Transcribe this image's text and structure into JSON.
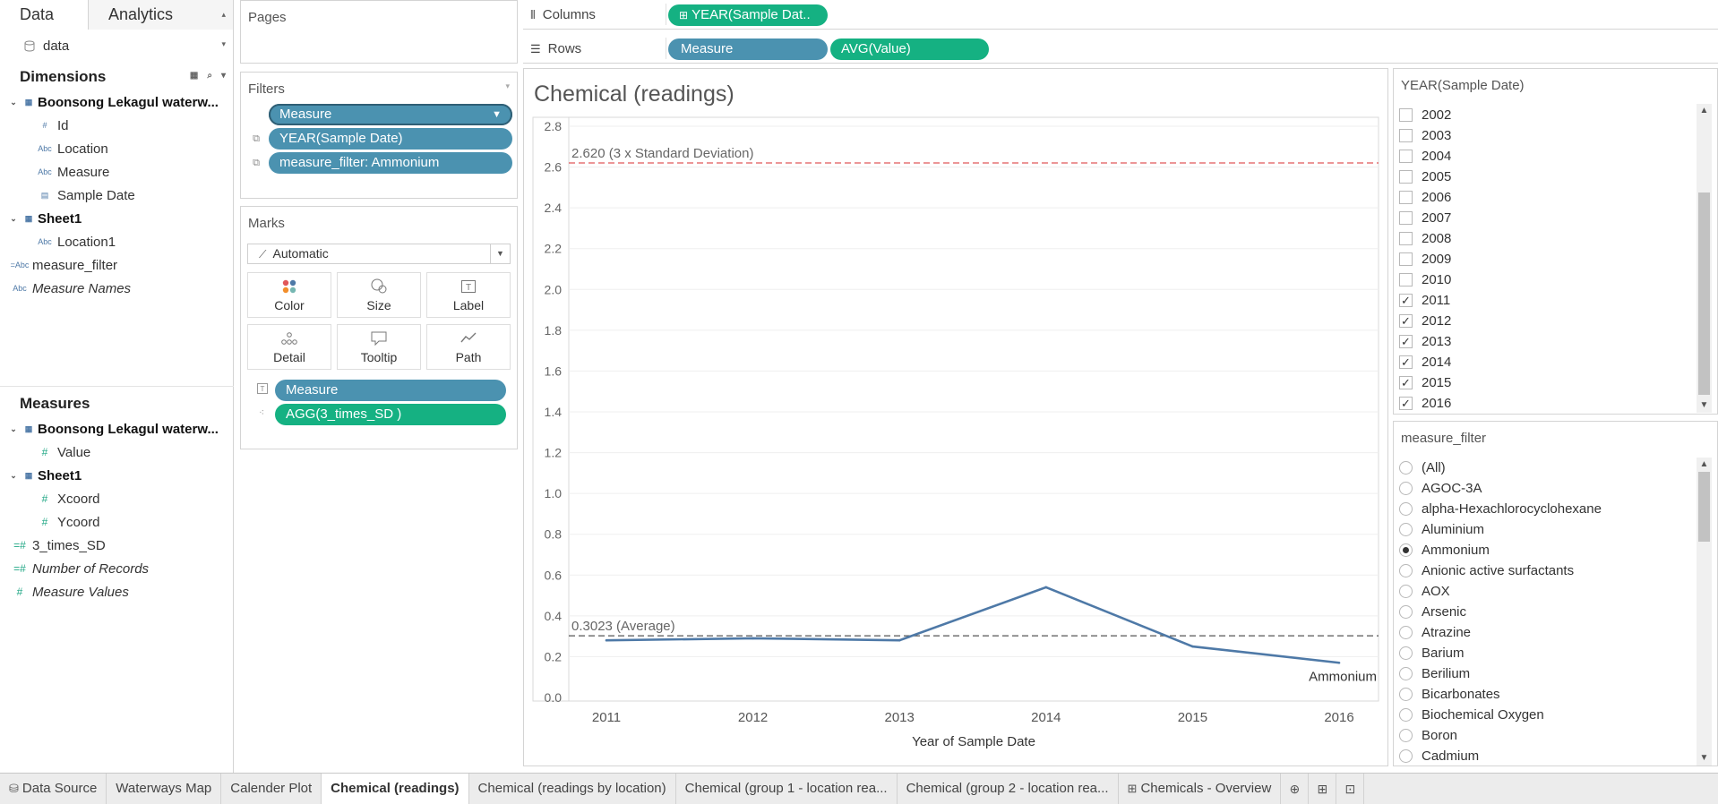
{
  "data_pane": {
    "tabs": [
      "Data",
      "Analytics"
    ],
    "datasource": "data",
    "dimensions_title": "Dimensions",
    "dimensions": [
      {
        "label": "Boonsong Lekagul waterw...",
        "group": true
      },
      {
        "label": "Id",
        "type": "#"
      },
      {
        "label": "Location",
        "type": "Abc"
      },
      {
        "label": "Measure",
        "type": "Abc"
      },
      {
        "label": "Sample Date",
        "type": "date"
      },
      {
        "label": "Sheet1",
        "group": true
      },
      {
        "label": "Location1",
        "type": "Abc"
      },
      {
        "label": "measure_filter",
        "type": "=Abc"
      },
      {
        "label": "Measure Names",
        "type": "Abc"
      }
    ],
    "measures_title": "Measures",
    "measures": [
      {
        "label": "Boonsong Lekagul waterw...",
        "group": true
      },
      {
        "label": "Value",
        "type": "#"
      },
      {
        "label": "Sheet1",
        "group": true
      },
      {
        "label": "Xcoord",
        "type": "#"
      },
      {
        "label": "Ycoord",
        "type": "#"
      },
      {
        "label": "3_times_SD",
        "type": "=#"
      },
      {
        "label": "Number of Records",
        "type": "=#"
      },
      {
        "label": "Measure Values",
        "type": "#"
      }
    ]
  },
  "pages": {
    "title": "Pages"
  },
  "filters": {
    "title": "Filters",
    "pills": [
      "Measure",
      "YEAR(Sample Date)",
      "measure_filter: Ammonium"
    ]
  },
  "marks": {
    "title": "Marks",
    "type": "Automatic",
    "buttons": [
      "Color",
      "Size",
      "Label",
      "Detail",
      "Tooltip",
      "Path"
    ],
    "pills": [
      "Measure",
      "AGG(3_times_SD )"
    ]
  },
  "shelves": {
    "columns_label": "Columns",
    "columns_pills": [
      "YEAR(Sample Dat.."
    ],
    "rows_label": "Rows",
    "rows_pills": [
      "Measure",
      "AVG(Value)"
    ]
  },
  "chart": {
    "title": "Chemical (readings)",
    "xlabel": "Year of Sample Date",
    "line_label": "Ammonium",
    "ref_sd_label": "2.620 (3 x Standard Deviation)",
    "ref_avg_label": "0.3023 (Average)",
    "colors": {
      "line": "#4e79a7",
      "sd_line": "#e15759",
      "avg_line": "#555555"
    }
  },
  "chart_data": {
    "type": "line",
    "x": [
      "2011",
      "2012",
      "2013",
      "2014",
      "2015",
      "2016"
    ],
    "series": [
      {
        "name": "Ammonium",
        "values": [
          0.28,
          0.29,
          0.28,
          0.54,
          0.25,
          0.17
        ]
      }
    ],
    "reference_lines": [
      {
        "label": "2.620 (3 x Standard Deviation)",
        "value": 2.62
      },
      {
        "label": "0.3023 (Average)",
        "value": 0.3023
      }
    ],
    "xlabel": "Year of Sample Date",
    "ylabel": "",
    "ylim": [
      0,
      2.8
    ],
    "yticks": [
      "0.0",
      "0.2",
      "0.4",
      "0.6",
      "0.8",
      "1.0",
      "1.2",
      "1.4",
      "1.6",
      "1.8",
      "2.0",
      "2.2",
      "2.4",
      "2.6",
      "2.8"
    ],
    "grid": true
  },
  "year_filter": {
    "title": "YEAR(Sample Date)",
    "items": [
      {
        "label": "2002",
        "checked": false
      },
      {
        "label": "2003",
        "checked": false
      },
      {
        "label": "2004",
        "checked": false
      },
      {
        "label": "2005",
        "checked": false
      },
      {
        "label": "2006",
        "checked": false
      },
      {
        "label": "2007",
        "checked": false
      },
      {
        "label": "2008",
        "checked": false
      },
      {
        "label": "2009",
        "checked": false
      },
      {
        "label": "2010",
        "checked": false
      },
      {
        "label": "2011",
        "checked": true
      },
      {
        "label": "2012",
        "checked": true
      },
      {
        "label": "2013",
        "checked": true
      },
      {
        "label": "2014",
        "checked": true
      },
      {
        "label": "2015",
        "checked": true
      },
      {
        "label": "2016",
        "checked": true
      }
    ]
  },
  "measure_filter": {
    "title": "measure_filter",
    "selected": "Ammonium",
    "items": [
      "(All)",
      "AGOC-3A",
      "alpha-Hexachlorocyclohexane",
      "Aluminium",
      "Ammonium",
      "Anionic active surfactants",
      "AOX",
      "Arsenic",
      "Atrazine",
      "Barium",
      "Berilium",
      "Bicarbonates",
      "Biochemical Oxygen",
      "Boron",
      "Cadmium"
    ]
  },
  "sheet_tabs": {
    "items": [
      {
        "label": "Data Source",
        "icon": "datasource"
      },
      {
        "label": "Waterways Map"
      },
      {
        "label": "Calender Plot"
      },
      {
        "label": "Chemical (readings)",
        "active": true
      },
      {
        "label": "Chemical (readings by location)"
      },
      {
        "label": "Chemical (group 1 - location rea..."
      },
      {
        "label": "Chemical (group 2 - location rea..."
      },
      {
        "label": "Chemicals - Overview",
        "icon": "dashboard"
      }
    ]
  }
}
